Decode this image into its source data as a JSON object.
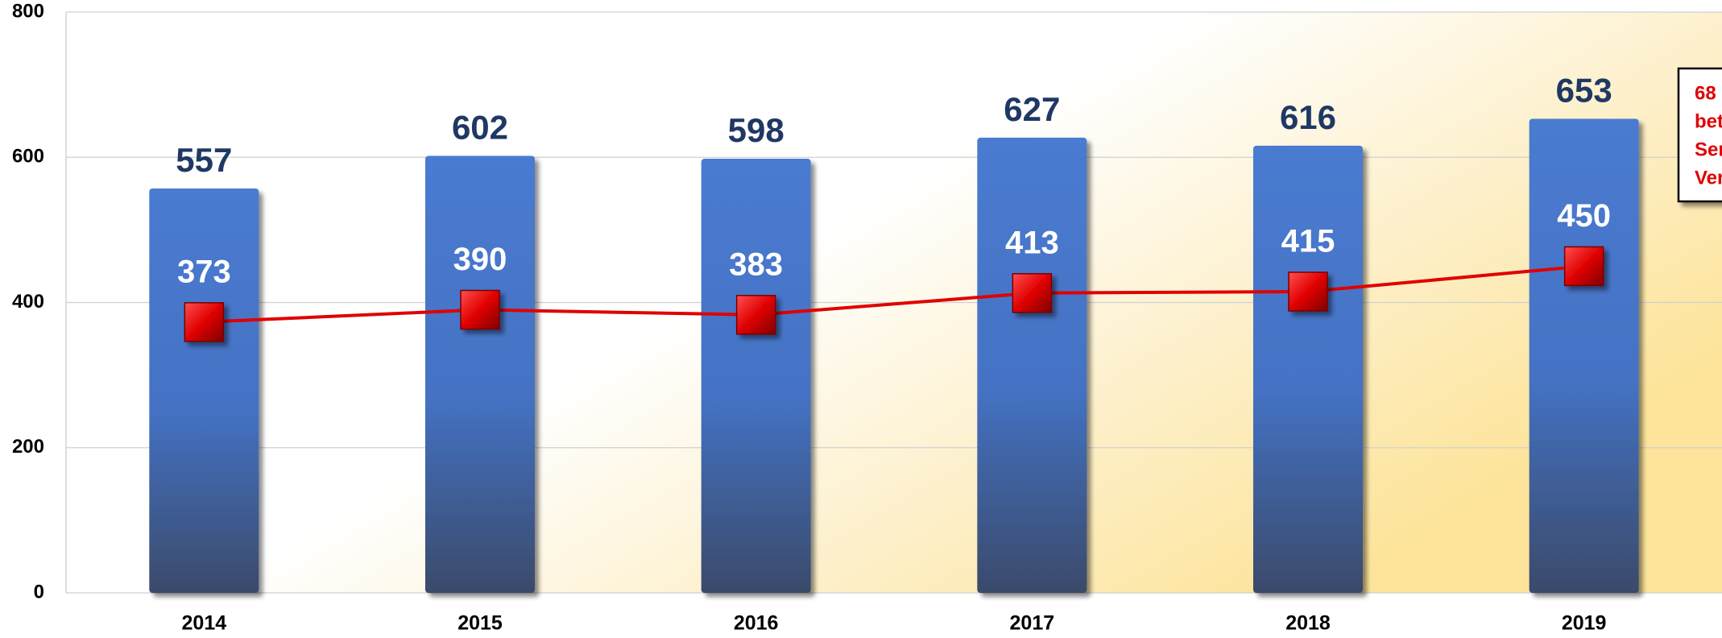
{
  "chart_data": {
    "type": "bar",
    "categories": [
      "2014",
      "2015",
      "2016",
      "2017",
      "2018",
      "2019"
    ],
    "series": [
      {
        "type": "bar",
        "color": "#4472c4",
        "values": [
          557,
          602,
          598,
          627,
          616,
          653
        ]
      },
      {
        "type": "line",
        "color": "#e00000",
        "values": [
          373,
          390,
          383,
          413,
          415,
          450
        ]
      }
    ],
    "ylim": [
      0,
      800
    ],
    "yticks": [
      0,
      200,
      400,
      600,
      800
    ],
    "grid": true,
    "annotation": [
      "68",
      "bet",
      "Ser",
      "Ver"
    ]
  }
}
